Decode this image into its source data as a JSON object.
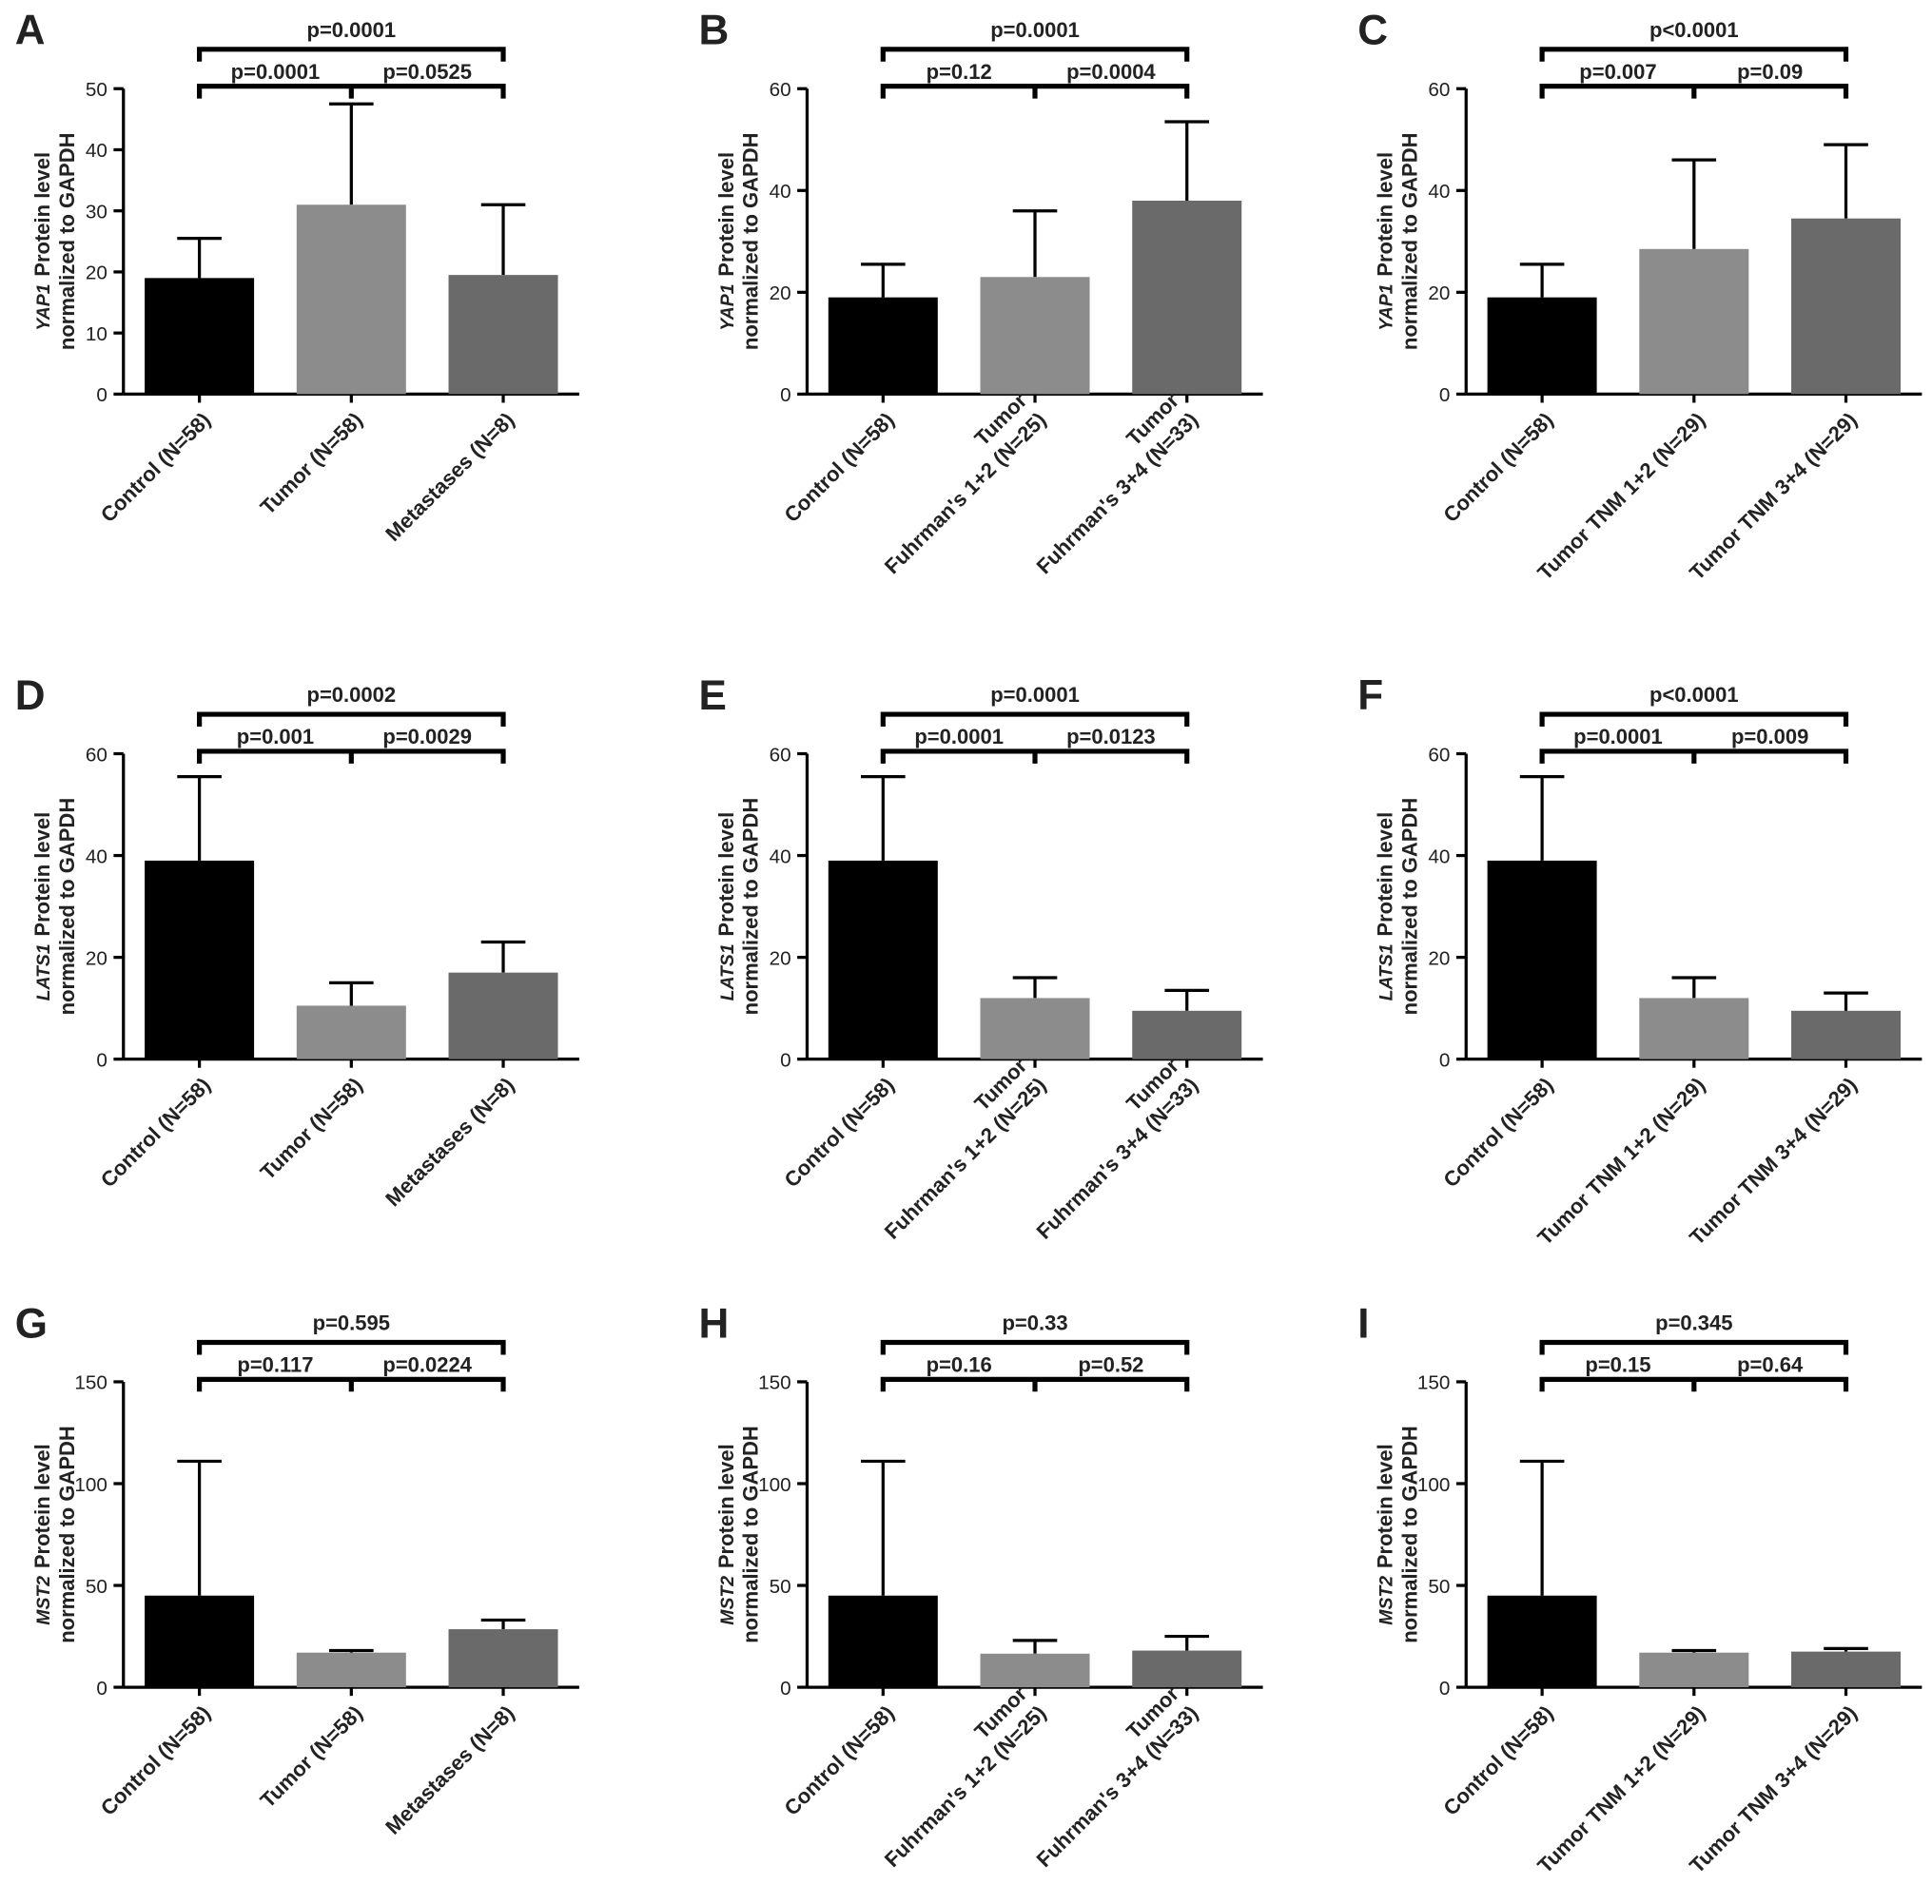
{
  "chart_data": [
    {
      "type": "bar",
      "panel": "A",
      "gene": "YAP1",
      "ylabel": [
        "Protein level",
        "normalized to GAPDH"
      ],
      "categories": [
        [
          "Control (N=58)"
        ],
        [
          "Tumor (N=58)"
        ],
        [
          "Metastases (N=8)"
        ]
      ],
      "values": [
        19,
        31,
        19.5
      ],
      "errors": [
        6.5,
        16.5,
        11.5
      ],
      "colors": [
        "#000000",
        "#8c8c8c",
        "#6a6a6a"
      ],
      "ylim": [
        0,
        50
      ],
      "yticks": [
        0,
        10,
        20,
        30,
        40,
        50
      ],
      "p_values": [
        "p=0.0001",
        "p=0.0001",
        "p=0.0525"
      ]
    },
    {
      "type": "bar",
      "panel": "B",
      "gene": "YAP1",
      "ylabel": [
        "Protein level",
        "normalized to GAPDH"
      ],
      "categories": [
        [
          "Control (N=58)"
        ],
        [
          "Tumor",
          "Fuhrman's 1+2 (N=25)"
        ],
        [
          "Tumor",
          "Fuhrman's 3+4 (N=33)"
        ]
      ],
      "values": [
        19,
        23,
        38
      ],
      "errors": [
        6.5,
        13,
        15.5
      ],
      "colors": [
        "#000000",
        "#8c8c8c",
        "#6a6a6a"
      ],
      "ylim": [
        0,
        60
      ],
      "yticks": [
        0,
        20,
        40,
        60
      ],
      "p_values": [
        "p=0.0001",
        "p=0.12",
        "p=0.0004"
      ]
    },
    {
      "type": "bar",
      "panel": "C",
      "gene": "YAP1",
      "ylabel": [
        "Protein level",
        "normalized to GAPDH"
      ],
      "categories": [
        [
          "Control (N=58)"
        ],
        [
          "Tumor TNM 1+2 (N=29)"
        ],
        [
          "Tumor TNM 3+4 (N=29)"
        ]
      ],
      "values": [
        19,
        28.5,
        34.5
      ],
      "errors": [
        6.5,
        17.5,
        14.5
      ],
      "colors": [
        "#000000",
        "#8c8c8c",
        "#6a6a6a"
      ],
      "ylim": [
        0,
        60
      ],
      "yticks": [
        0,
        20,
        40,
        60
      ],
      "p_values": [
        "p<0.0001",
        "p=0.007",
        "p=0.09"
      ]
    },
    {
      "type": "bar",
      "panel": "D",
      "gene": "LATS1",
      "ylabel": [
        "Protein level",
        "normalized to GAPDH"
      ],
      "categories": [
        [
          "Control (N=58)"
        ],
        [
          "Tumor (N=58)"
        ],
        [
          "Metastases (N=8)"
        ]
      ],
      "values": [
        39,
        10.5,
        17
      ],
      "errors": [
        16.5,
        4.5,
        6
      ],
      "colors": [
        "#000000",
        "#8c8c8c",
        "#6a6a6a"
      ],
      "ylim": [
        0,
        60
      ],
      "yticks": [
        0,
        20,
        40,
        60
      ],
      "p_values": [
        "p=0.0002",
        "p=0.001",
        "p=0.0029"
      ]
    },
    {
      "type": "bar",
      "panel": "E",
      "gene": "LATS1",
      "ylabel": [
        "Protein level",
        "normalized to GAPDH"
      ],
      "categories": [
        [
          "Control (N=58)"
        ],
        [
          "Tumor",
          "Fuhrman's 1+2 (N=25)"
        ],
        [
          "Tumor",
          "Fuhrman's 3+4 (N=33)"
        ]
      ],
      "values": [
        39,
        12,
        9.5
      ],
      "errors": [
        16.5,
        4,
        4
      ],
      "colors": [
        "#000000",
        "#8c8c8c",
        "#6a6a6a"
      ],
      "ylim": [
        0,
        60
      ],
      "yticks": [
        0,
        20,
        40,
        60
      ],
      "p_values": [
        "p=0.0001",
        "p=0.0001",
        "p=0.0123"
      ]
    },
    {
      "type": "bar",
      "panel": "F",
      "gene": "LATS1",
      "ylabel": [
        "Protein level",
        "normalized to GAPDH"
      ],
      "categories": [
        [
          "Control (N=58)"
        ],
        [
          "Tumor TNM 1+2 (N=29)"
        ],
        [
          "Tumor TNM 3+4 (N=29)"
        ]
      ],
      "values": [
        39,
        12,
        9.5
      ],
      "errors": [
        16.5,
        4,
        3.5
      ],
      "colors": [
        "#000000",
        "#8c8c8c",
        "#6a6a6a"
      ],
      "ylim": [
        0,
        60
      ],
      "yticks": [
        0,
        20,
        40,
        60
      ],
      "p_values": [
        "p<0.0001",
        "p=0.0001",
        "p=0.009"
      ]
    },
    {
      "type": "bar",
      "panel": "G",
      "gene": "MST2",
      "ylabel": [
        "Protein level",
        "normalized to GAPDH"
      ],
      "categories": [
        [
          "Control (N=58)"
        ],
        [
          "Tumor (N=58)"
        ],
        [
          "Metastases (N=8)"
        ]
      ],
      "values": [
        45,
        17,
        28.5
      ],
      "errors": [
        66,
        1,
        4.5
      ],
      "colors": [
        "#000000",
        "#8c8c8c",
        "#6a6a6a"
      ],
      "ylim": [
        0,
        150
      ],
      "yticks": [
        0,
        50,
        100,
        150
      ],
      "p_values": [
        "p=0.595",
        "p=0.117",
        "p=0.0224"
      ]
    },
    {
      "type": "bar",
      "panel": "H",
      "gene": "MST2",
      "ylabel": [
        "Protein level",
        "normalized to GAPDH"
      ],
      "categories": [
        [
          "Control (N=58)"
        ],
        [
          "Tumor",
          "Fuhrman's 1+2 (N=25)"
        ],
        [
          "Tumor",
          "Fuhrman's 3+4 (N=33)"
        ]
      ],
      "values": [
        45,
        16.5,
        18
      ],
      "errors": [
        66,
        6.5,
        7
      ],
      "colors": [
        "#000000",
        "#8c8c8c",
        "#6a6a6a"
      ],
      "ylim": [
        0,
        150
      ],
      "yticks": [
        0,
        50,
        100,
        150
      ],
      "p_values": [
        "p=0.33",
        "p=0.16",
        "p=0.52"
      ]
    },
    {
      "type": "bar",
      "panel": "I",
      "gene": "MST2",
      "ylabel": [
        "Protein level",
        "normalized to GAPDH"
      ],
      "categories": [
        [
          "Control (N=58)"
        ],
        [
          "Tumor TNM 1+2 (N=29)"
        ],
        [
          "Tumor TNM 3+4 (N=29)"
        ]
      ],
      "values": [
        45,
        17,
        17.5
      ],
      "errors": [
        66,
        1,
        1.5
      ],
      "colors": [
        "#000000",
        "#8c8c8c",
        "#6a6a6a"
      ],
      "ylim": [
        0,
        150
      ],
      "yticks": [
        0,
        50,
        100,
        150
      ],
      "p_values": [
        "p=0.345",
        "p=0.15",
        "p=0.64"
      ]
    }
  ]
}
